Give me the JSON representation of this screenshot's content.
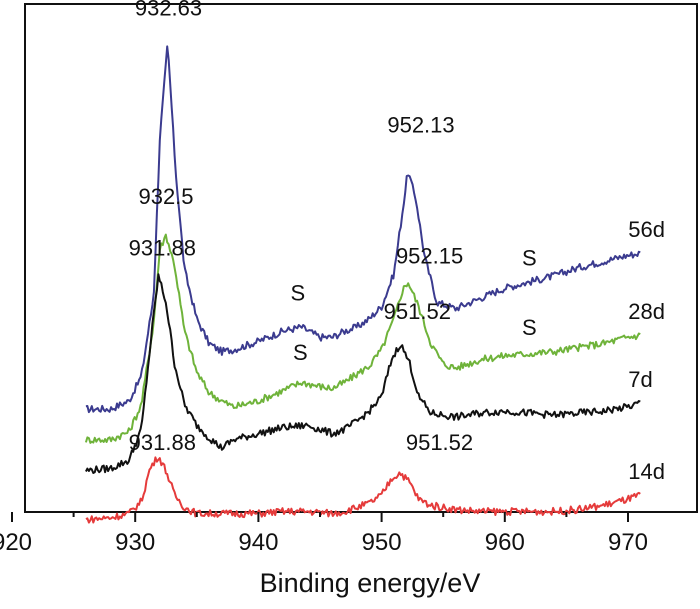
{
  "chart_data": {
    "type": "line",
    "xlabel": "Binding energy/eV",
    "ylabel": "",
    "xlim": [
      920,
      975
    ],
    "x_ticks": [
      "920",
      "930",
      "940",
      "950",
      "960",
      "970"
    ],
    "y_ticks": false,
    "grid": false,
    "legend": "inline labels at right end of each curve",
    "series": [
      {
        "name": "56d",
        "color": "#3b3b8f",
        "points": [
          [
            926,
            0.2
          ],
          [
            928,
            0.2
          ],
          [
            929.5,
            0.24
          ],
          [
            930.5,
            0.36
          ],
          [
            931.5,
            0.75
          ],
          [
            932,
            1.52
          ],
          [
            932.63,
            1.98
          ],
          [
            933.3,
            1.35
          ],
          [
            934,
            0.88
          ],
          [
            935,
            0.64
          ],
          [
            936,
            0.52
          ],
          [
            937,
            0.48
          ],
          [
            938,
            0.49
          ],
          [
            940,
            0.53
          ],
          [
            942,
            0.58
          ],
          [
            943.5,
            0.6
          ],
          [
            945,
            0.55
          ],
          [
            946,
            0.55
          ],
          [
            947,
            0.58
          ],
          [
            948,
            0.6
          ],
          [
            949,
            0.64
          ],
          [
            950,
            0.7
          ],
          [
            951,
            0.86
          ],
          [
            951.6,
            1.12
          ],
          [
            952.13,
            1.36
          ],
          [
            952.8,
            1.22
          ],
          [
            953.5,
            0.94
          ],
          [
            954.5,
            0.72
          ],
          [
            956,
            0.69
          ],
          [
            958,
            0.74
          ],
          [
            960,
            0.79
          ],
          [
            962,
            0.82
          ],
          [
            964,
            0.85
          ],
          [
            966,
            0.89
          ],
          [
            968,
            0.92
          ],
          [
            970,
            0.95
          ],
          [
            971,
            0.96
          ]
        ]
      },
      {
        "name": "28d",
        "color": "#6fb33a",
        "points": [
          [
            926,
            0.05
          ],
          [
            928,
            0.05
          ],
          [
            929.5,
            0.09
          ],
          [
            930.5,
            0.22
          ],
          [
            931.5,
            0.62
          ],
          [
            932,
            0.98
          ],
          [
            932.5,
            1.05
          ],
          [
            933.2,
            0.9
          ],
          [
            934,
            0.58
          ],
          [
            935,
            0.38
          ],
          [
            936,
            0.28
          ],
          [
            937,
            0.24
          ],
          [
            938,
            0.21
          ],
          [
            940,
            0.24
          ],
          [
            942,
            0.29
          ],
          [
            943.5,
            0.33
          ],
          [
            945,
            0.31
          ],
          [
            946,
            0.3
          ],
          [
            947,
            0.33
          ],
          [
            948,
            0.37
          ],
          [
            949,
            0.41
          ],
          [
            950,
            0.49
          ],
          [
            951,
            0.64
          ],
          [
            951.7,
            0.78
          ],
          [
            952.15,
            0.82
          ],
          [
            953,
            0.7
          ],
          [
            954,
            0.52
          ],
          [
            955,
            0.42
          ],
          [
            956,
            0.4
          ],
          [
            958,
            0.44
          ],
          [
            960,
            0.46
          ],
          [
            962,
            0.47
          ],
          [
            964,
            0.48
          ],
          [
            966,
            0.5
          ],
          [
            968,
            0.52
          ],
          [
            970,
            0.55
          ],
          [
            971,
            0.56
          ]
        ]
      },
      {
        "name": "7d",
        "color": "#111111",
        "points": [
          [
            926,
            -0.1
          ],
          [
            928,
            -0.09
          ],
          [
            929.5,
            -0.05
          ],
          [
            930.5,
            0.1
          ],
          [
            931.3,
            0.55
          ],
          [
            931.88,
            0.85
          ],
          [
            932.5,
            0.72
          ],
          [
            933.2,
            0.42
          ],
          [
            934,
            0.22
          ],
          [
            935,
            0.12
          ],
          [
            936,
            0.06
          ],
          [
            937,
            0.01
          ],
          [
            938,
            0.05
          ],
          [
            940,
            0.08
          ],
          [
            942,
            0.11
          ],
          [
            944,
            0.12
          ],
          [
            945,
            0.1
          ],
          [
            946,
            0.08
          ],
          [
            947,
            0.1
          ],
          [
            948,
            0.14
          ],
          [
            949,
            0.19
          ],
          [
            950,
            0.26
          ],
          [
            950.8,
            0.44
          ],
          [
            951.52,
            0.52
          ],
          [
            952.3,
            0.42
          ],
          [
            953,
            0.26
          ],
          [
            954,
            0.18
          ],
          [
            956,
            0.16
          ],
          [
            958,
            0.18
          ],
          [
            960,
            0.19
          ],
          [
            962,
            0.18
          ],
          [
            964,
            0.17
          ],
          [
            966,
            0.18
          ],
          [
            968,
            0.19
          ],
          [
            970,
            0.21
          ],
          [
            971,
            0.23
          ]
        ]
      },
      {
        "name": "14d",
        "color": "#e53b3b",
        "points": [
          [
            926,
            -0.34
          ],
          [
            928,
            -0.33
          ],
          [
            929.5,
            -0.31
          ],
          [
            930.5,
            -0.25
          ],
          [
            931.2,
            -0.09
          ],
          [
            931.88,
            -0.03
          ],
          [
            932.5,
            -0.1
          ],
          [
            933.2,
            -0.22
          ],
          [
            934,
            -0.28
          ],
          [
            935,
            -0.31
          ],
          [
            936,
            -0.31
          ],
          [
            938,
            -0.31
          ],
          [
            940,
            -0.31
          ],
          [
            942,
            -0.3
          ],
          [
            944,
            -0.3
          ],
          [
            946,
            -0.31
          ],
          [
            947,
            -0.3
          ],
          [
            948,
            -0.28
          ],
          [
            949,
            -0.26
          ],
          [
            950,
            -0.22
          ],
          [
            950.8,
            -0.14
          ],
          [
            951.52,
            -0.11
          ],
          [
            952.3,
            -0.16
          ],
          [
            953,
            -0.24
          ],
          [
            954,
            -0.27
          ],
          [
            956,
            -0.29
          ],
          [
            958,
            -0.3
          ],
          [
            960,
            -0.3
          ],
          [
            962,
            -0.3
          ],
          [
            964,
            -0.3
          ],
          [
            966,
            -0.29
          ],
          [
            968,
            -0.27
          ],
          [
            970,
            -0.24
          ],
          [
            971,
            -0.22
          ]
        ]
      }
    ],
    "annotations": [
      {
        "text": "932.63",
        "x": 932.7,
        "y": 2.12
      },
      {
        "text": "952.13",
        "x": 953.2,
        "y": 1.55
      },
      {
        "text": "932.5",
        "x": 932.5,
        "y": 1.2
      },
      {
        "text": "931.88",
        "x": 932.2,
        "y": 0.95
      },
      {
        "text": "952.15",
        "x": 953.9,
        "y": 0.91
      },
      {
        "text": "951.52",
        "x": 952.9,
        "y": 0.64
      },
      {
        "text": "931.88",
        "x": 932.2,
        "y": 0.0
      },
      {
        "text": "951.52",
        "x": 954.7,
        "y": 0.0
      },
      {
        "text": "S",
        "x": 943.2,
        "y": 0.73
      },
      {
        "text": "S",
        "x": 943.4,
        "y": 0.44
      },
      {
        "text": "S",
        "x": 962.0,
        "y": 0.9
      },
      {
        "text": "S",
        "x": 962.0,
        "y": 0.56
      }
    ]
  }
}
